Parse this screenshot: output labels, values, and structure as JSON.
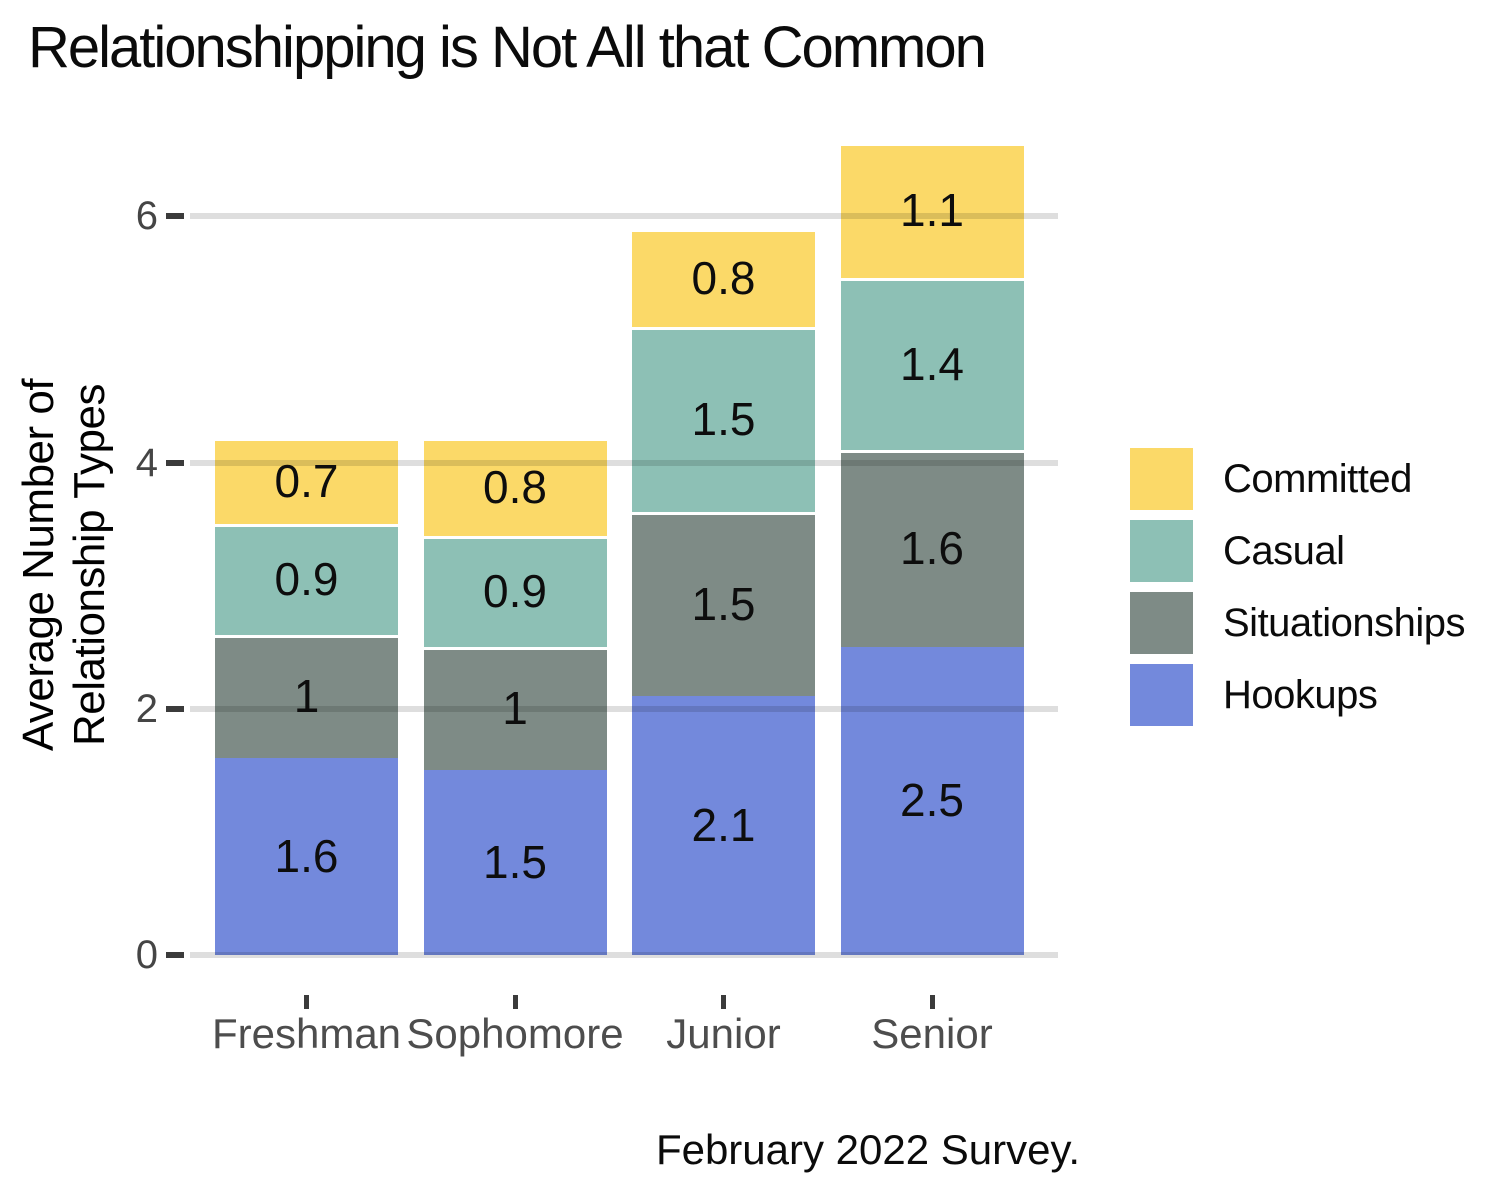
{
  "chart_data": {
    "type": "bar",
    "stacked": true,
    "title": "Relationshipping is Not All that Common",
    "y_axis_label_lines": [
      "Average Number of",
      "Relationship Types"
    ],
    "caption": "February 2022 Survey.",
    "categories": [
      "Freshman",
      "Sophomore",
      "Junior",
      "Senior"
    ],
    "series": [
      {
        "name": "Hookups",
        "color": "#7389DC",
        "values": [
          1.6,
          1.5,
          2.1,
          2.5
        ],
        "labels": [
          "1.6",
          "1.5",
          "2.1",
          "2.5"
        ]
      },
      {
        "name": "Situationships",
        "color": "#7E8B86",
        "values": [
          1.0,
          1.0,
          1.5,
          1.6
        ],
        "labels": [
          "1",
          "1",
          "1.5",
          "1.6"
        ]
      },
      {
        "name": "Casual",
        "color": "#8DC0B5",
        "values": [
          0.9,
          0.9,
          1.5,
          1.4
        ],
        "labels": [
          "0.9",
          "0.9",
          "1.5",
          "1.4"
        ]
      },
      {
        "name": "Committed",
        "color": "#FBD968",
        "values": [
          0.7,
          0.8,
          0.8,
          1.1
        ],
        "labels": [
          "0.7",
          "0.8",
          "0.8",
          "1.1"
        ]
      }
    ],
    "legend": {
      "position": "right",
      "items": [
        "Committed",
        "Casual",
        "Situationships",
        "Hookups"
      ]
    },
    "y_ticks": [
      0,
      2,
      4,
      6
    ],
    "y_tick_labels": [
      "0",
      "2",
      "4",
      "6"
    ],
    "ylim": [
      0,
      6.6
    ],
    "grid": true
  },
  "style_colors": {
    "grid_overlay": "rgba(0,0,0,0.13)",
    "axis_tick": "#3b3b3b",
    "y_tick_text": "#454545",
    "x_tick_text": "#4d4d4d",
    "text": "#0b0b0b",
    "background": "#ffffff"
  }
}
